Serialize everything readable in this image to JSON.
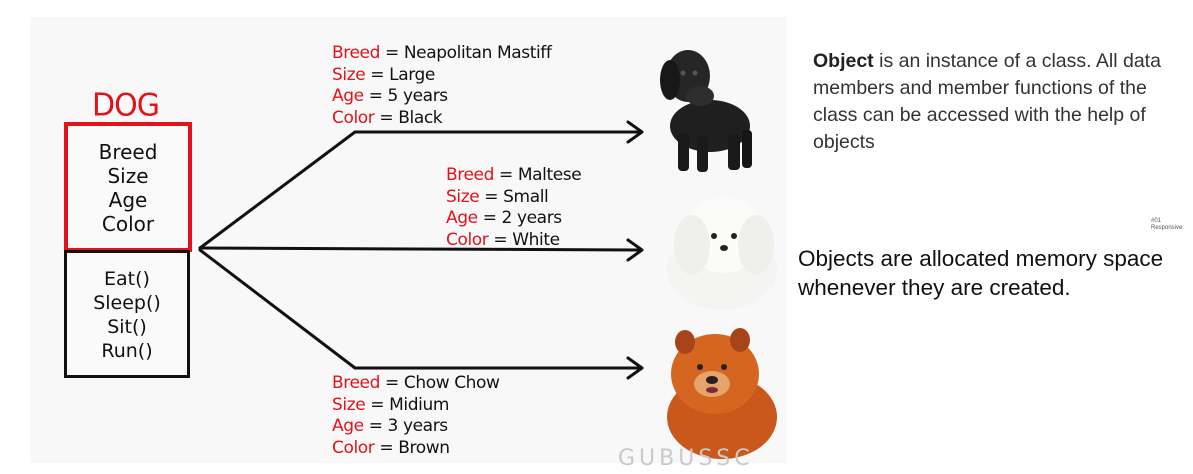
{
  "diagram": {
    "class_name": "DOG",
    "attributes": [
      "Breed",
      "Size",
      "Age",
      "Color"
    ],
    "methods": [
      "Eat()",
      "Sleep()",
      "Sit()",
      "Run()"
    ],
    "objects": [
      {
        "breed_key": "Breed",
        "breed": "Neapolitan Mastiff",
        "size_key": "Size",
        "size": "Large",
        "age_key": "Age",
        "age": "5 years",
        "color_key": "Color",
        "color": "Black"
      },
      {
        "breed_key": "Breed",
        "breed": "Maltese",
        "size_key": "Size",
        "size": "Small",
        "age_key": "Age",
        "age": "2 years",
        "color_key": "Color",
        "color": "White"
      },
      {
        "breed_key": "Breed",
        "breed": "Chow Chow",
        "size_key": "Size",
        "size": "Midium",
        "age_key": "Age",
        "age": "3 years",
        "color_key": "Color",
        "color": "Brown"
      }
    ],
    "watermark": "GUBUSSC",
    "colors": {
      "class_red": "#e3121b",
      "ink": "#111111"
    }
  },
  "notes": {
    "definition_bold": "Object",
    "definition_rest": " is an instance of a class. All data members and member functions of the class can be accessed with the help of objects",
    "memory": "Objects are allocated memory space whenever they are created.",
    "tiny_line1": "#01",
    "tiny_line2": "Responsive"
  }
}
